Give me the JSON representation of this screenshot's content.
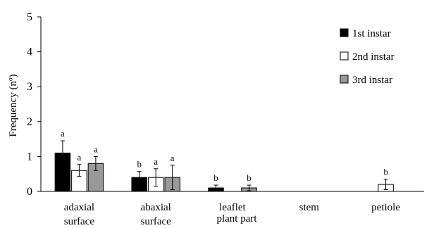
{
  "chart_data": {
    "type": "bar",
    "title": "",
    "ylabel": "Frequency (nº)",
    "xlabel": "plant part",
    "ylim": [
      0,
      5
    ],
    "yticks": [
      0,
      1,
      2,
      3,
      4,
      5
    ],
    "categories": [
      {
        "line1": "adaxial",
        "line2": "surface"
      },
      {
        "line1": "abaxial",
        "line2": "surface"
      },
      {
        "line1": "leaflet",
        "line2": ""
      },
      {
        "line1": "stem",
        "line2": ""
      },
      {
        "line1": "petiole",
        "line2": ""
      }
    ],
    "series": [
      {
        "name": "1st instar",
        "color": "#000000",
        "values": [
          1.1,
          0.4,
          0.1,
          0,
          0
        ],
        "errors": [
          0.35,
          0.17,
          0.08,
          0,
          0
        ],
        "letters": [
          "a",
          "b",
          "b",
          "",
          ""
        ]
      },
      {
        "name": "2nd instar",
        "color": "#ffffff",
        "values": [
          0.6,
          0.4,
          0,
          0,
          0.2
        ],
        "errors": [
          0.17,
          0.25,
          0,
          0,
          0.15
        ],
        "letters": [
          "a",
          "a",
          "",
          "",
          "b"
        ]
      },
      {
        "name": "3rd instar",
        "color": "#999999",
        "values": [
          0.8,
          0.4,
          0.1,
          0,
          0
        ],
        "errors": [
          0.2,
          0.35,
          0.08,
          0,
          0
        ],
        "letters": [
          "a",
          "a",
          "b",
          "",
          ""
        ]
      }
    ],
    "legend_position": "top-right",
    "grid": false
  }
}
